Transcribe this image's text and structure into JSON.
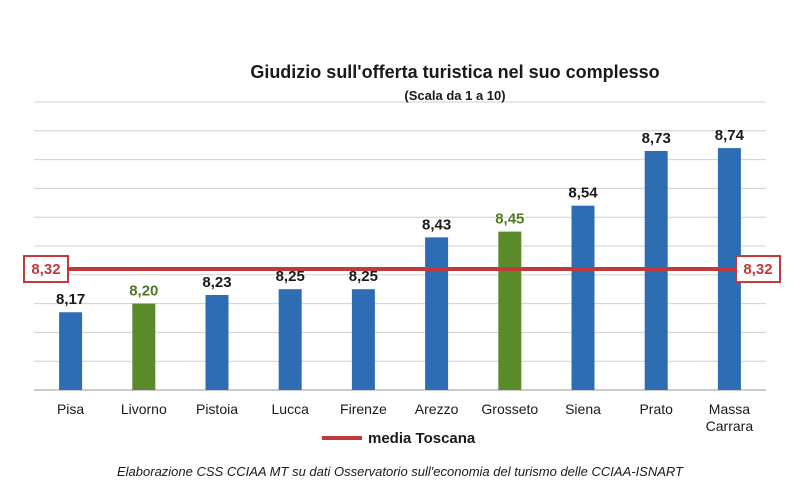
{
  "chart_data": {
    "type": "bar",
    "title": "Giudizio sull'offerta turistica nel suo complesso",
    "subtitle": "(Scala da 1 a 10)",
    "categories": [
      "Pisa",
      "Livorno",
      "Pistoia",
      "Lucca",
      "Firenze",
      "Arezzo",
      "Grosseto",
      "Siena",
      "Prato",
      "Massa Carrara"
    ],
    "category_lines": [
      [
        "Pisa"
      ],
      [
        "Livorno"
      ],
      [
        "Pistoia"
      ],
      [
        "Lucca"
      ],
      [
        "Firenze"
      ],
      [
        "Arezzo"
      ],
      [
        "Grosseto"
      ],
      [
        "Siena"
      ],
      [
        "Prato"
      ],
      [
        "Massa",
        "Carrara"
      ]
    ],
    "values": [
      8.17,
      8.2,
      8.23,
      8.25,
      8.25,
      8.43,
      8.45,
      8.54,
      8.73,
      8.74
    ],
    "value_labels": [
      "8,17",
      "8,20",
      "8,23",
      "8,25",
      "8,25",
      "8,43",
      "8,45",
      "8,54",
      "8,73",
      "8,74"
    ],
    "bar_colors": [
      "#2e6db4",
      "#5a8a2a",
      "#2e6db4",
      "#2e6db4",
      "#2e6db4",
      "#2e6db4",
      "#5a8a2a",
      "#2e6db4",
      "#2e6db4",
      "#2e6db4"
    ],
    "label_colors": [
      "#1a1a1a",
      "#4f7a22",
      "#1a1a1a",
      "#1a1a1a",
      "#1a1a1a",
      "#1a1a1a",
      "#4f7a22",
      "#1a1a1a",
      "#1a1a1a",
      "#1a1a1a"
    ],
    "reference_line": {
      "value": 8.32,
      "label": "8,32",
      "name": "media Toscana",
      "color": "#c0393b"
    },
    "ylim": [
      7.9,
      8.9
    ],
    "grid": true,
    "legend": "bottom-center",
    "xlabel": "",
    "ylabel": ""
  },
  "footnote": "Elaborazione CSS CCIAA MT su dati Osservatorio sull'economia del turismo delle CCIAA-ISNART",
  "colors": {
    "grid": "#cfcfcf",
    "axis": "#9a9a9a",
    "background": "#ffffff"
  }
}
